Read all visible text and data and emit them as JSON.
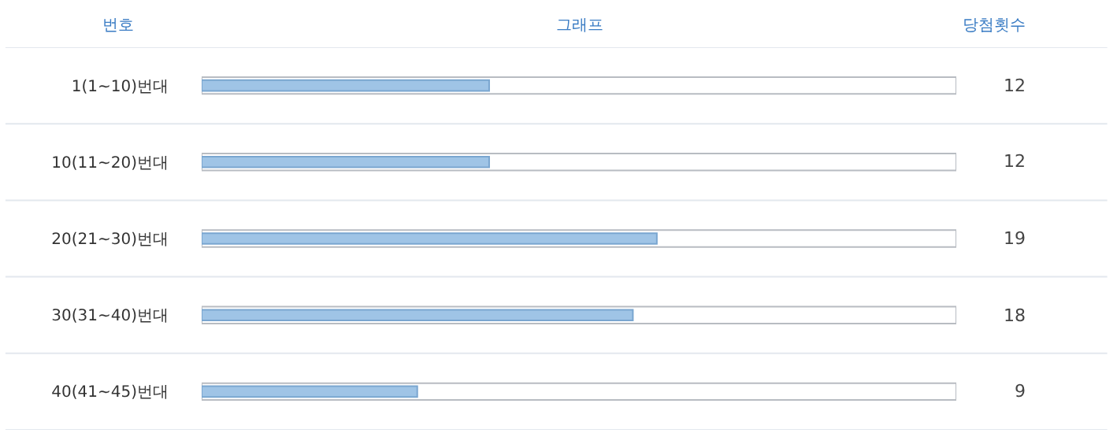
{
  "chart_data": {
    "type": "bar",
    "orientation": "horizontal",
    "ylabel": "번호",
    "xlabel": "그래프",
    "annotations": [
      "당첨횟수"
    ],
    "categories": [
      "1(1~10)번대",
      "10(11~20)번대",
      "20(21~30)번대",
      "30(31~40)번대",
      "40(41~45)번대"
    ],
    "values": [
      12,
      12,
      19,
      18,
      9
    ],
    "color": "#9fc4e6",
    "xlim": [
      0,
      31.5
    ],
    "data_labels": true
  }
}
